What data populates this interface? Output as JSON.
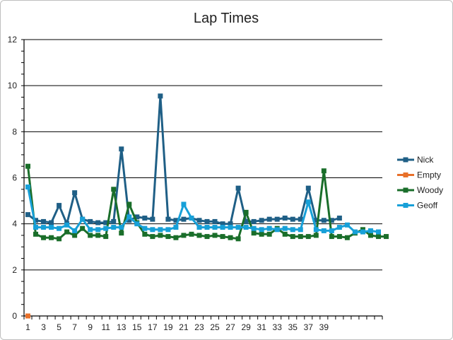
{
  "chart_data": {
    "type": "line",
    "title": "Lap Times",
    "xlabel": "",
    "ylabel": "",
    "ylim": [
      0,
      12
    ],
    "yticks": [
      "0",
      "2",
      "4",
      "6",
      "8",
      "10",
      "12"
    ],
    "x_count": 46,
    "x_tick_labels": [
      "1",
      "3",
      "5",
      "7",
      "9",
      "11",
      "13",
      "15",
      "17",
      "19",
      "21",
      "23",
      "25",
      "27",
      "29",
      "31",
      "33",
      "35",
      "37",
      "39"
    ],
    "grid": true,
    "legend_position": "right",
    "series": [
      {
        "name": "Nick",
        "color": "#1f5f86",
        "values": [
          4.4,
          4.15,
          4.1,
          4.05,
          4.8,
          4.0,
          5.35,
          4.2,
          4.1,
          4.05,
          4.05,
          4.1,
          7.25,
          4.15,
          4.3,
          4.25,
          4.2,
          9.55,
          4.2,
          4.15,
          4.2,
          4.25,
          4.15,
          4.1,
          4.1,
          4.0,
          4.0,
          5.55,
          4.1,
          4.1,
          4.15,
          4.2,
          4.2,
          4.25,
          4.2,
          4.2,
          5.55,
          4.15,
          4.15,
          4.15,
          4.25
        ]
      },
      {
        "name": "Empty",
        "color": "#e8702a",
        "values": [
          0
        ]
      },
      {
        "name": "Woody",
        "color": "#1a6e2a",
        "values": [
          6.5,
          3.55,
          3.4,
          3.4,
          3.35,
          3.65,
          3.5,
          3.8,
          3.5,
          3.5,
          3.45,
          5.5,
          3.6,
          4.85,
          4.05,
          3.55,
          3.45,
          3.5,
          3.45,
          3.4,
          3.5,
          3.55,
          3.5,
          3.45,
          3.5,
          3.45,
          3.4,
          3.35,
          4.5,
          3.6,
          3.55,
          3.55,
          3.8,
          3.55,
          3.45,
          3.45,
          3.45,
          3.5,
          6.3,
          3.45,
          3.45,
          3.4,
          3.6,
          3.75,
          3.5,
          3.45,
          3.45
        ]
      },
      {
        "name": "Geoff",
        "color": "#17a0d8",
        "values": [
          5.6,
          3.85,
          3.85,
          3.85,
          3.8,
          3.95,
          3.7,
          4.2,
          3.75,
          3.75,
          3.8,
          3.85,
          3.85,
          4.3,
          4.0,
          3.8,
          3.75,
          3.75,
          3.75,
          3.85,
          4.85,
          4.25,
          3.85,
          3.85,
          3.85,
          3.85,
          3.85,
          3.85,
          3.85,
          3.8,
          3.75,
          3.8,
          3.75,
          3.8,
          3.75,
          3.75,
          4.95,
          3.75,
          3.7,
          3.7,
          3.85,
          3.95,
          3.65,
          3.65,
          3.7,
          3.65
        ]
      }
    ]
  }
}
